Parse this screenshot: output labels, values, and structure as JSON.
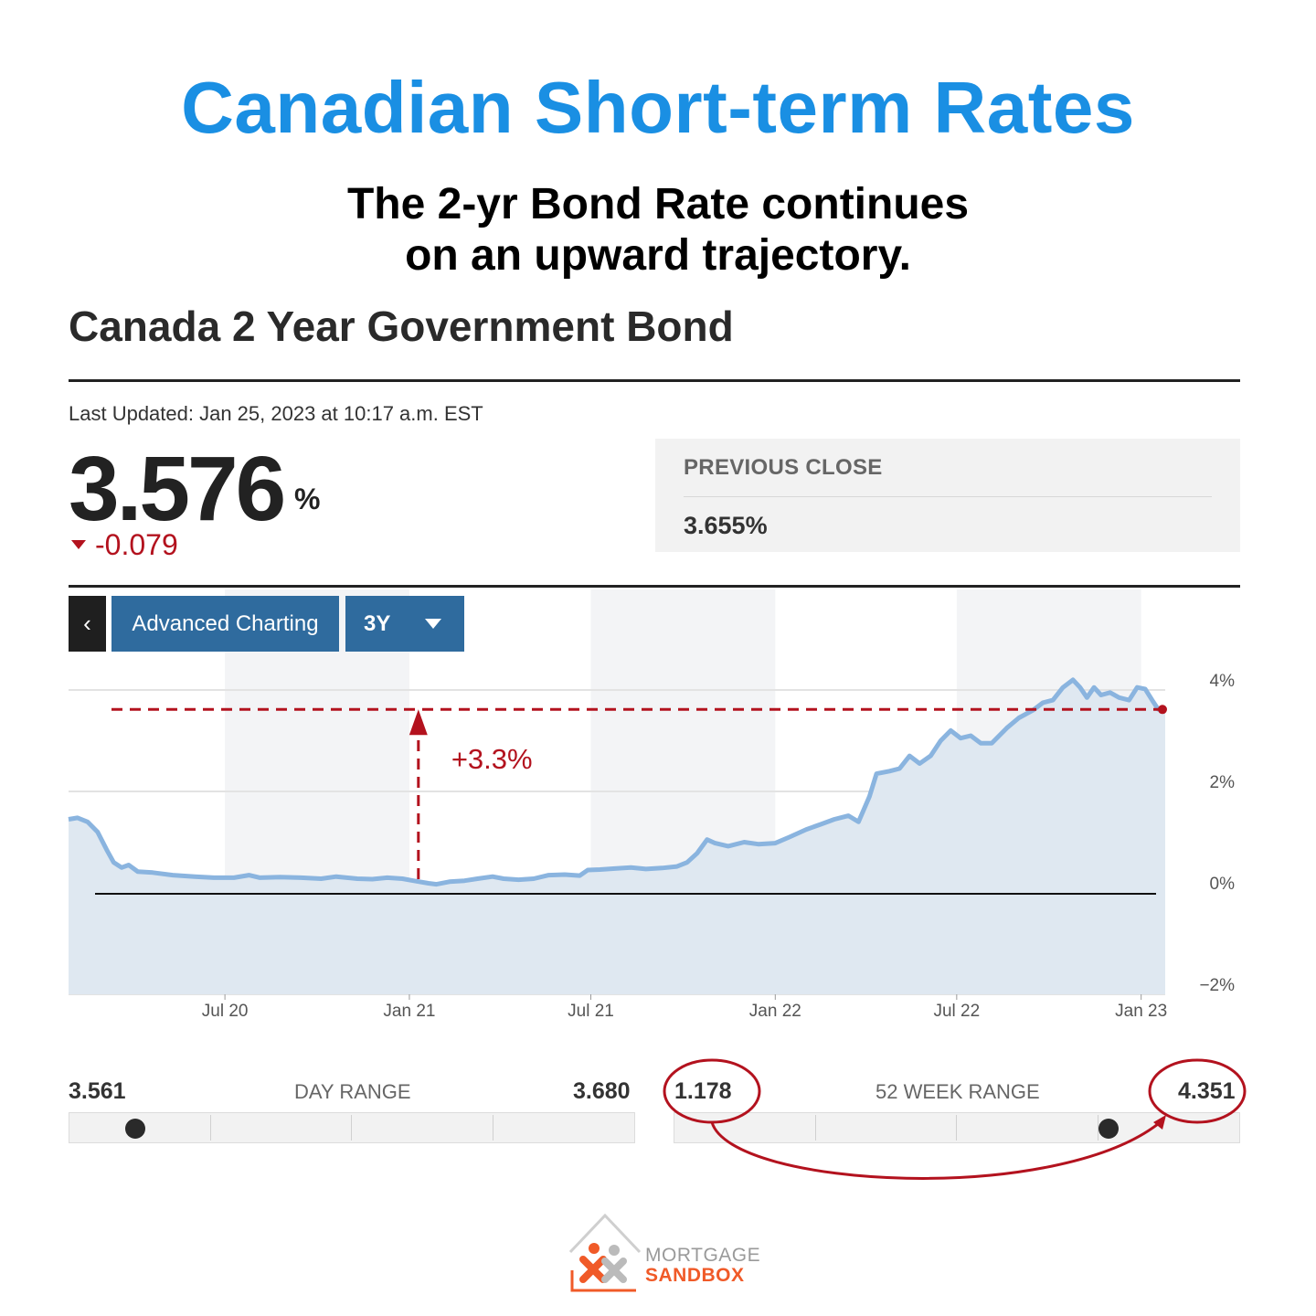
{
  "headline": "Canadian Short-term Rates",
  "subhead": [
    "The 2-yr Bond Rate continues",
    "on an upward trajectory."
  ],
  "bond_title": "Canada 2 Year Government Bond",
  "last_updated": "Last Updated: Jan 25, 2023 at 10:17 a.m. EST",
  "quote": {
    "value": "3.576",
    "unit": "%",
    "change": "-0.079",
    "change_color": "#b3121e"
  },
  "previous_close": {
    "label": "PREVIOUS CLOSE",
    "value": "3.655%"
  },
  "toolbar": {
    "back_label": "‹",
    "advanced_label": "Advanced Charting",
    "range_label": "3Y",
    "back_icon": "chevron-left-icon",
    "dropdown_icon": "caret-down-icon"
  },
  "annotation": {
    "label": "+3.3%",
    "color": "#b3121e"
  },
  "chart_data": {
    "type": "area",
    "x_ticks": [
      "Jul 20",
      "Jan 21",
      "Jul 21",
      "Jan 22",
      "Jul 22",
      "Jan 23"
    ],
    "y_ticks": [
      "4%",
      "2%",
      "0%",
      "−2%"
    ],
    "y_tick_values": [
      4,
      2,
      0,
      -2
    ],
    "ylim": [
      -2,
      4
    ],
    "x_range": [
      "2020-01-27",
      "2023-01-25"
    ],
    "grid": true,
    "line_color": "#8ab4df",
    "fill_color": "#dfe8f1",
    "series": [
      {
        "points": [
          [
            "2020-01-27",
            1.45
          ],
          [
            "2020-02-05",
            1.48
          ],
          [
            "2020-02-15",
            1.4
          ],
          [
            "2020-02-25",
            1.2
          ],
          [
            "2020-03-05",
            0.85
          ],
          [
            "2020-03-12",
            0.6
          ],
          [
            "2020-03-20",
            0.5
          ],
          [
            "2020-03-27",
            0.55
          ],
          [
            "2020-04-05",
            0.42
          ],
          [
            "2020-04-20",
            0.4
          ],
          [
            "2020-05-10",
            0.35
          ],
          [
            "2020-06-01",
            0.32
          ],
          [
            "2020-06-20",
            0.3
          ],
          [
            "2020-07-10",
            0.3
          ],
          [
            "2020-07-25",
            0.35
          ],
          [
            "2020-08-05",
            0.3
          ],
          [
            "2020-08-25",
            0.31
          ],
          [
            "2020-09-15",
            0.3
          ],
          [
            "2020-10-05",
            0.28
          ],
          [
            "2020-10-20",
            0.32
          ],
          [
            "2020-11-10",
            0.28
          ],
          [
            "2020-11-25",
            0.27
          ],
          [
            "2020-12-10",
            0.3
          ],
          [
            "2020-12-25",
            0.28
          ],
          [
            "2021-01-05",
            0.24
          ],
          [
            "2021-01-20",
            0.19
          ],
          [
            "2021-01-28",
            0.17
          ],
          [
            "2021-02-10",
            0.22
          ],
          [
            "2021-02-25",
            0.24
          ],
          [
            "2021-03-10",
            0.28
          ],
          [
            "2021-03-25",
            0.32
          ],
          [
            "2021-04-05",
            0.28
          ],
          [
            "2021-04-20",
            0.26
          ],
          [
            "2021-05-05",
            0.28
          ],
          [
            "2021-05-20",
            0.35
          ],
          [
            "2021-06-05",
            0.36
          ],
          [
            "2021-06-20",
            0.34
          ],
          [
            "2021-06-28",
            0.45
          ],
          [
            "2021-07-10",
            0.46
          ],
          [
            "2021-07-25",
            0.48
          ],
          [
            "2021-08-10",
            0.5
          ],
          [
            "2021-08-25",
            0.47
          ],
          [
            "2021-09-10",
            0.49
          ],
          [
            "2021-09-25",
            0.52
          ],
          [
            "2021-10-05",
            0.6
          ],
          [
            "2021-10-15",
            0.78
          ],
          [
            "2021-10-25",
            1.05
          ],
          [
            "2021-11-02",
            0.98
          ],
          [
            "2021-11-15",
            0.92
          ],
          [
            "2021-12-01",
            1.0
          ],
          [
            "2021-12-15",
            0.96
          ],
          [
            "2022-01-01",
            0.98
          ],
          [
            "2022-01-15",
            1.1
          ],
          [
            "2022-02-01",
            1.25
          ],
          [
            "2022-02-15",
            1.35
          ],
          [
            "2022-03-01",
            1.45
          ],
          [
            "2022-03-15",
            1.52
          ],
          [
            "2022-03-25",
            1.4
          ],
          [
            "2022-04-05",
            1.9
          ],
          [
            "2022-04-12",
            2.35
          ],
          [
            "2022-04-25",
            2.4
          ],
          [
            "2022-05-05",
            2.45
          ],
          [
            "2022-05-15",
            2.7
          ],
          [
            "2022-05-25",
            2.55
          ],
          [
            "2022-06-05",
            2.7
          ],
          [
            "2022-06-15",
            3.0
          ],
          [
            "2022-06-25",
            3.2
          ],
          [
            "2022-07-05",
            3.05
          ],
          [
            "2022-07-15",
            3.1
          ],
          [
            "2022-07-25",
            2.95
          ],
          [
            "2022-08-05",
            2.95
          ],
          [
            "2022-08-20",
            3.25
          ],
          [
            "2022-09-01",
            3.45
          ],
          [
            "2022-09-15",
            3.6
          ],
          [
            "2022-09-25",
            3.75
          ],
          [
            "2022-10-05",
            3.8
          ],
          [
            "2022-10-15",
            4.05
          ],
          [
            "2022-10-25",
            4.2
          ],
          [
            "2022-11-01",
            4.05
          ],
          [
            "2022-11-08",
            3.85
          ],
          [
            "2022-11-15",
            4.05
          ],
          [
            "2022-11-22",
            3.9
          ],
          [
            "2022-12-01",
            3.95
          ],
          [
            "2022-12-10",
            3.85
          ],
          [
            "2022-12-20",
            3.8
          ],
          [
            "2022-12-28",
            4.05
          ],
          [
            "2023-01-05",
            4.02
          ],
          [
            "2023-01-12",
            3.8
          ],
          [
            "2023-01-18",
            3.62
          ],
          [
            "2023-01-25",
            3.58
          ]
        ]
      }
    ]
  },
  "day_range": {
    "low": "3.561",
    "label": "DAY RANGE",
    "high": "3.680",
    "position": 0.08
  },
  "week52_range": {
    "low": "1.178",
    "label": "52 WEEK RANGE",
    "high": "4.351",
    "position": 0.75
  },
  "logo": {
    "line1": "MORTGAGE",
    "line2": "SANDBOX",
    "orange": "#f05a28"
  }
}
